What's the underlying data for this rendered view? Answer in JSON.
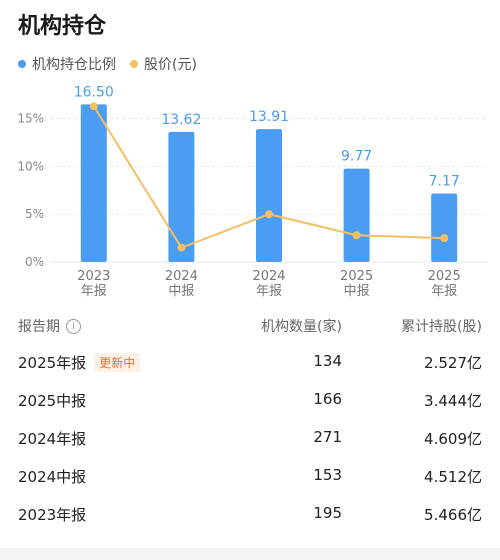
{
  "header": {
    "title": "机构持仓"
  },
  "legend": {
    "items": [
      {
        "label": "机构持仓比例",
        "color": "#4a9df0"
      },
      {
        "label": "股价(元)",
        "color": "#f5c065"
      }
    ]
  },
  "chart_data": {
    "type": "bar",
    "categories": [
      "2023\n年报",
      "2024\n中报",
      "2024\n年报",
      "2025\n中报",
      "2025\n年报"
    ],
    "series": [
      {
        "name": "机构持仓比例",
        "values": [
          16.5,
          13.62,
          13.91,
          9.77,
          7.17
        ],
        "color": "#4a9df0"
      },
      {
        "name": "股价(元)",
        "values": [
          16.3,
          1.5,
          5.0,
          2.8,
          2.5
        ],
        "color": "#f5c065"
      }
    ],
    "data_labels": [
      "16.50",
      "13.62",
      "13.91",
      "9.77",
      "7.17"
    ],
    "yticks": [
      "0%",
      "5%",
      "10%",
      "15%"
    ],
    "ylim": [
      0,
      18
    ]
  },
  "table": {
    "headers": {
      "period": "报告期",
      "count": "机构数量(家)",
      "holding": "累计持股(股)"
    },
    "rows": [
      {
        "period": "2025年报",
        "badge": "更新中",
        "count": "134",
        "holding": "2.527亿"
      },
      {
        "period": "2025中报",
        "badge": "",
        "count": "166",
        "holding": "3.444亿"
      },
      {
        "period": "2024年报",
        "badge": "",
        "count": "271",
        "holding": "4.609亿"
      },
      {
        "period": "2024中报",
        "badge": "",
        "count": "153",
        "holding": "4.512亿"
      },
      {
        "period": "2023年报",
        "badge": "",
        "count": "195",
        "holding": "5.466亿"
      }
    ]
  }
}
